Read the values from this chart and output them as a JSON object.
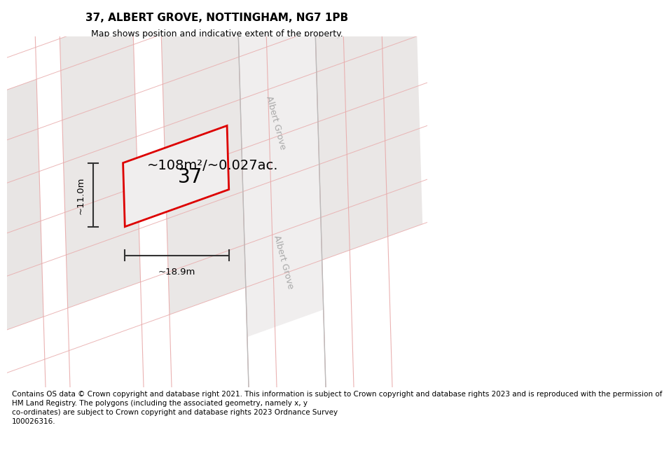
{
  "title": "37, ALBERT GROVE, NOTTINGHAM, NG7 1PB",
  "subtitle": "Map shows position and indicative extent of the property.",
  "footer": "Contains OS data © Crown copyright and database right 2021. This information is subject to Crown copyright and database rights 2023 and is reproduced with the permission of\nHM Land Registry. The polygons (including the associated geometry, namely x, y\nco-ordinates) are subject to Crown copyright and database rights 2023 Ordnance Survey\n100026316.",
  "map_bg": "#f5f3f2",
  "block_fill": "#e8e5e4",
  "block_edge": "#cccccc",
  "road_fill": "#f5f3f2",
  "pink_color": "#e8aaaa",
  "gray_road_color": "#cccccc",
  "property_fill": "#f0eeee",
  "property_edge": "#dd0000",
  "property_lw": 2.0,
  "street_color": "#aaaaaa",
  "dim_color": "#333333",
  "text_color": "#111111",
  "area_label": "~108m²/~0.027ac.",
  "number_label": "37",
  "width_label": "~18.9m",
  "height_label": "~11.0m",
  "street_name": "Albert Grove",
  "title_fontsize": 11,
  "subtitle_fontsize": 9,
  "area_fontsize": 14,
  "number_fontsize": 20,
  "dim_fontsize": 9.5,
  "street_fontsize": 9,
  "footer_fontsize": 7.5
}
